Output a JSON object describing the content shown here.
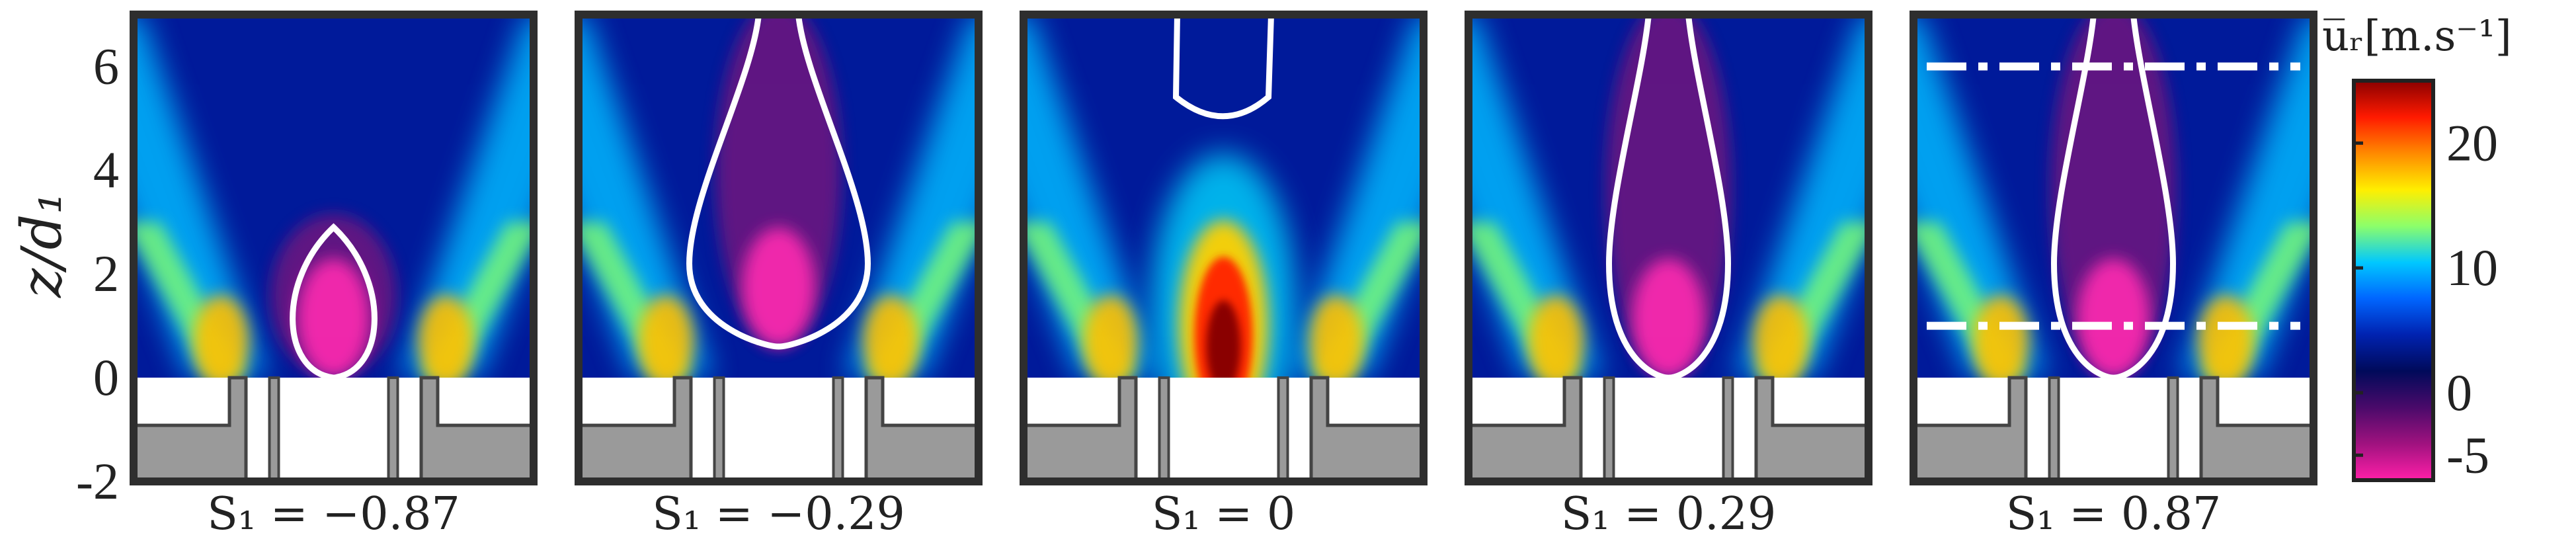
{
  "chart_data": {
    "type": "heatmap",
    "ylabel": "z/d₁",
    "ylim": [
      -2,
      7
    ],
    "yticks": [
      {
        "value": 6,
        "label": "6"
      },
      {
        "value": 4,
        "label": "4"
      },
      {
        "value": 2,
        "label": "2"
      },
      {
        "value": 0,
        "label": "0"
      },
      {
        "value": -2,
        "label": "-2"
      }
    ],
    "panels": [
      {
        "label": "S₁ = −0.87",
        "S1": -0.87,
        "recirculation_z": [
          0.0,
          2.9
        ],
        "jet_peak": 18,
        "dashed_lines": []
      },
      {
        "label": "S₁ = −0.29",
        "S1": -0.29,
        "recirculation_z": [
          0.6,
          7.0
        ],
        "jet_peak": 16,
        "dashed_lines": []
      },
      {
        "label": "S₁ = 0",
        "S1": 0,
        "recirculation_z": [
          4.9,
          7.0
        ],
        "jet_peak": 25,
        "dashed_lines": []
      },
      {
        "label": "S₁ = 0.29",
        "S1": 0.29,
        "recirculation_z": [
          0.0,
          7.0
        ],
        "jet_peak": 17,
        "dashed_lines": []
      },
      {
        "label": "S₁ = 0.87",
        "S1": 0.87,
        "recirculation_z": [
          0.0,
          7.0
        ],
        "jet_peak": 17,
        "dashed_lines": [
          6.0,
          1.0
        ]
      }
    ],
    "colorbar": {
      "title": "u̅ᵣ[m.s⁻¹]",
      "range": [
        -7,
        25
      ],
      "ticks": [
        {
          "value": 20,
          "label": "20"
        },
        {
          "value": 10,
          "label": "10"
        },
        {
          "value": 0,
          "label": "0"
        },
        {
          "value": -5,
          "label": "-5"
        }
      ],
      "colors": [
        "#ff1fa8",
        "#a0127f",
        "#4a0a6a",
        "#000a5a",
        "#0022b0",
        "#0066ff",
        "#00c8ff",
        "#8cff6a",
        "#ffee00",
        "#ff8a00",
        "#ff1a00",
        "#8a0000"
      ]
    },
    "colors": {
      "background": "#001a9a",
      "contour": "#ffffff",
      "injector": "#9a9a9a",
      "frame": "#2e2e2e"
    }
  }
}
